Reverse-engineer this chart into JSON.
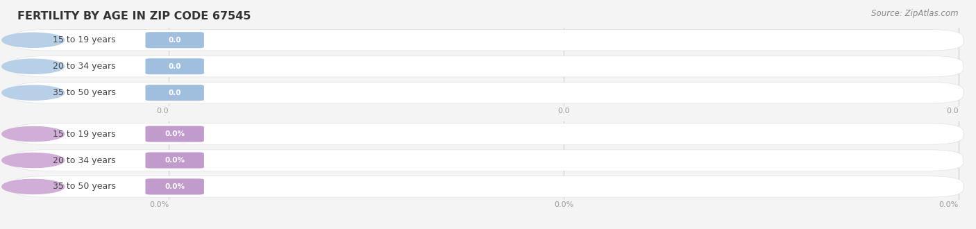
{
  "title": "FERTILITY BY AGE IN ZIP CODE 67545",
  "source": "Source: ZipAtlas.com",
  "groups": [
    {
      "labels": [
        "15 to 19 years",
        "20 to 34 years",
        "35 to 50 years"
      ],
      "values": [
        0.0,
        0.0,
        0.0
      ],
      "value_labels": [
        "0.0",
        "0.0",
        "0.0"
      ],
      "bar_bg_color": "#b8cfe8",
      "bar_label_bg_color": "#a0bedd",
      "label_color": "#444444",
      "value_text_color": "#ffffff",
      "tick_label_suffix": "",
      "axis_tick_labels": [
        "0.0",
        "0.0",
        "0.0"
      ]
    },
    {
      "labels": [
        "15 to 19 years",
        "20 to 34 years",
        "35 to 50 years"
      ],
      "values": [
        0.0,
        0.0,
        0.0
      ],
      "value_labels": [
        "0.0%",
        "0.0%",
        "0.0%"
      ],
      "bar_bg_color": "#d0aed8",
      "bar_label_bg_color": "#c09bcc",
      "label_color": "#444444",
      "value_text_color": "#ffffff",
      "tick_label_suffix": "%",
      "axis_tick_labels": [
        "0.0%",
        "0.0%",
        "0.0%"
      ]
    }
  ],
  "bg_color": "#f4f4f4",
  "fig_width": 14.06,
  "fig_height": 3.3,
  "title_fontsize": 11.5,
  "label_fontsize": 9,
  "value_fontsize": 7.5,
  "source_fontsize": 8.5
}
